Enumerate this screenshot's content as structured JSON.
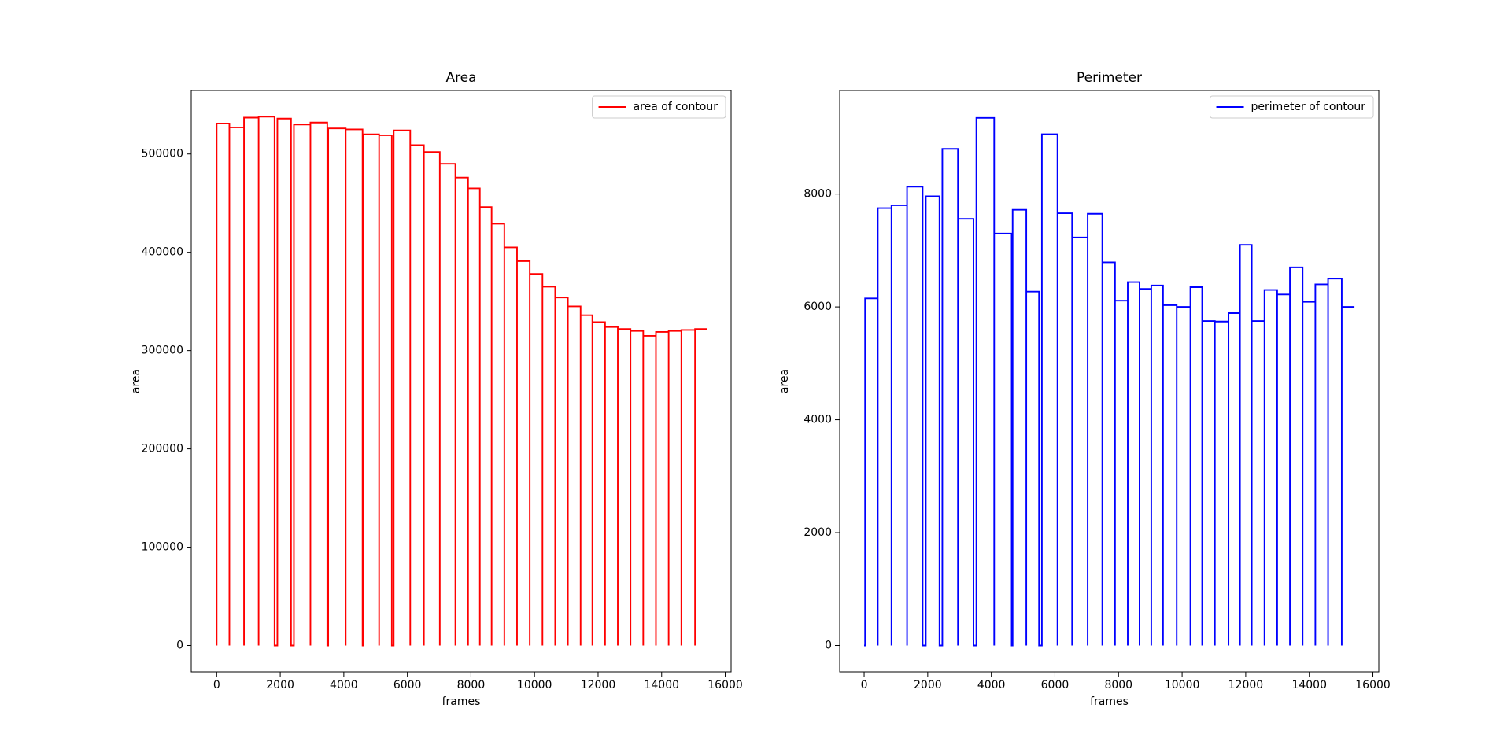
{
  "chart_data": [
    {
      "type": "line",
      "title": "Area",
      "xlabel": "frames",
      "ylabel": "area",
      "legend": "upper right",
      "xlim": [
        -800,
        16185
      ],
      "ylim": [
        -26800,
        564600
      ],
      "xticks": [
        0,
        2000,
        4000,
        6000,
        8000,
        10000,
        12000,
        14000,
        16000
      ],
      "yticks": [
        0,
        100000,
        200000,
        300000,
        400000,
        500000
      ],
      "x": [
        0,
        0,
        400,
        400,
        400,
        400,
        860,
        860,
        860,
        860,
        1320,
        1320,
        1320,
        1320,
        1820,
        1820,
        1910,
        1910,
        2340,
        2340,
        2430,
        2430,
        2950,
        2950,
        2950,
        2950,
        3480,
        3480,
        3510,
        3510,
        4060,
        4060,
        4060,
        4060,
        4590,
        4590,
        4620,
        4620,
        5110,
        5110,
        5110,
        5110,
        5510,
        5510,
        5570,
        5570,
        6090,
        6090,
        6090,
        6090,
        6520,
        6520,
        6520,
        6520,
        7020,
        7020,
        7020,
        7020,
        7510,
        7510,
        7510,
        7510,
        7910,
        7910,
        7910,
        7910,
        8280,
        8280,
        8280,
        8280,
        8650,
        8650,
        8650,
        8650,
        9050,
        9050,
        9050,
        9050,
        9450,
        9450,
        9450,
        9450,
        9850,
        9850,
        9850,
        9850,
        10250,
        10250,
        10250,
        10250,
        10650,
        10650,
        10650,
        10650,
        11050,
        11050,
        11050,
        11050,
        11450,
        11450,
        11450,
        11450,
        11820,
        11820,
        11820,
        11820,
        12220,
        12220,
        12220,
        12220,
        12620,
        12620,
        12620,
        12620,
        13020,
        13020,
        13020,
        13020,
        13420,
        13420,
        13420,
        13420,
        13820,
        13820,
        13820,
        13820,
        14220,
        14220,
        14220,
        14220,
        14620,
        14620,
        14620,
        14620,
        15050,
        15050,
        15050,
        15050,
        15420
      ],
      "series": [
        {
          "name": "area of contour",
          "color": "#ff0000",
          "values": [
            0,
            531000,
            531000,
            0,
            0,
            527000,
            527000,
            0,
            0,
            537000,
            537000,
            0,
            0,
            538000,
            538000,
            0,
            0,
            536000,
            536000,
            0,
            0,
            530000,
            530000,
            0,
            0,
            532000,
            532000,
            0,
            0,
            526000,
            526000,
            0,
            0,
            525000,
            525000,
            0,
            0,
            520000,
            520000,
            0,
            0,
            519000,
            519000,
            0,
            0,
            524000,
            524000,
            0,
            0,
            509000,
            509000,
            0,
            0,
            502000,
            502000,
            0,
            0,
            490000,
            490000,
            0,
            0,
            476000,
            476000,
            0,
            0,
            465000,
            465000,
            0,
            0,
            446000,
            446000,
            0,
            0,
            429000,
            429000,
            0,
            0,
            405000,
            405000,
            0,
            0,
            391000,
            391000,
            0,
            0,
            378000,
            378000,
            0,
            0,
            365000,
            365000,
            0,
            0,
            354000,
            354000,
            0,
            0,
            345000,
            345000,
            0,
            0,
            336000,
            336000,
            0,
            0,
            329000,
            329000,
            0,
            0,
            324000,
            324000,
            0,
            0,
            322000,
            322000,
            0,
            0,
            320000,
            320000,
            0,
            0,
            315000,
            315000,
            0,
            0,
            319000,
            319000,
            0,
            0,
            320000,
            320000,
            0,
            0,
            321000,
            321000,
            0,
            0,
            322000,
            322000
          ]
        }
      ]
    },
    {
      "type": "line",
      "title": "Perimeter",
      "xlabel": "frames",
      "ylabel": "area",
      "legend": "upper right",
      "xlim": [
        -768,
        16185
      ],
      "ylim": [
        -467,
        9835
      ],
      "xticks": [
        0,
        2000,
        4000,
        6000,
        8000,
        10000,
        12000,
        14000,
        16000
      ],
      "yticks": [
        0,
        2000,
        4000,
        6000,
        8000
      ],
      "x": [
        0,
        30,
        30,
        430,
        430,
        430,
        430,
        860,
        860,
        860,
        860,
        1350,
        1350,
        1350,
        1350,
        1840,
        1840,
        1940,
        1940,
        2370,
        2370,
        2460,
        2460,
        2950,
        2950,
        2950,
        2950,
        3440,
        3440,
        3530,
        3530,
        4090,
        4090,
        4090,
        4090,
        4640,
        4640,
        4670,
        4670,
        5100,
        5100,
        5100,
        5100,
        5500,
        5500,
        5590,
        5590,
        6080,
        6080,
        6080,
        6080,
        6540,
        6540,
        6540,
        6540,
        7030,
        7030,
        7030,
        7030,
        7490,
        7490,
        7490,
        7490,
        7890,
        7890,
        7890,
        7890,
        8290,
        8290,
        8290,
        8290,
        8660,
        8660,
        8660,
        8660,
        9030,
        9030,
        9030,
        9030,
        9400,
        9400,
        9400,
        9400,
        9830,
        9830,
        9830,
        9830,
        10260,
        10260,
        10260,
        10260,
        10630,
        10630,
        10630,
        10630,
        11030,
        11030,
        11030,
        11030,
        11460,
        11460,
        11460,
        11460,
        11820,
        11820,
        11820,
        11820,
        12190,
        12190,
        12190,
        12190,
        12590,
        12590,
        12590,
        12590,
        12990,
        12990,
        12990,
        12990,
        13390,
        13390,
        13390,
        13390,
        13790,
        13790,
        13790,
        13790,
        14190,
        14190,
        14190,
        14190,
        14590,
        14590,
        14590,
        14590,
        15020,
        15020,
        15020,
        15020,
        15420
      ],
      "series": [
        {
          "name": "perimeter of contour",
          "color": "#0000ff",
          "values": [
            0,
            0,
            6150,
            6150,
            0,
            0,
            7750,
            7750,
            0,
            0,
            7800,
            7800,
            0,
            0,
            8130,
            8130,
            0,
            0,
            7960,
            7960,
            0,
            0,
            8800,
            8800,
            0,
            0,
            7560,
            7560,
            0,
            0,
            9350,
            9350,
            0,
            0,
            7300,
            7300,
            0,
            0,
            7720,
            7720,
            0,
            0,
            6270,
            6270,
            0,
            0,
            9060,
            9060,
            0,
            0,
            7660,
            7660,
            0,
            0,
            7230,
            7230,
            0,
            0,
            7650,
            7650,
            0,
            0,
            6790,
            6790,
            0,
            0,
            6110,
            6110,
            0,
            0,
            6440,
            6440,
            0,
            0,
            6320,
            6320,
            0,
            0,
            6380,
            6380,
            0,
            0,
            6030,
            6030,
            0,
            0,
            6000,
            6000,
            0,
            0,
            6350,
            6350,
            0,
            0,
            5750,
            5750,
            0,
            0,
            5740,
            5740,
            0,
            0,
            5890,
            5890,
            0,
            0,
            7100,
            7100,
            0,
            0,
            5750,
            5750,
            0,
            0,
            6300,
            6300,
            0,
            0,
            6220,
            6220,
            0,
            0,
            6700,
            6700,
            0,
            0,
            6090,
            6090,
            0,
            0,
            6400,
            6400,
            0,
            0,
            6500,
            6500,
            0,
            0,
            6000,
            6000
          ]
        }
      ]
    }
  ]
}
